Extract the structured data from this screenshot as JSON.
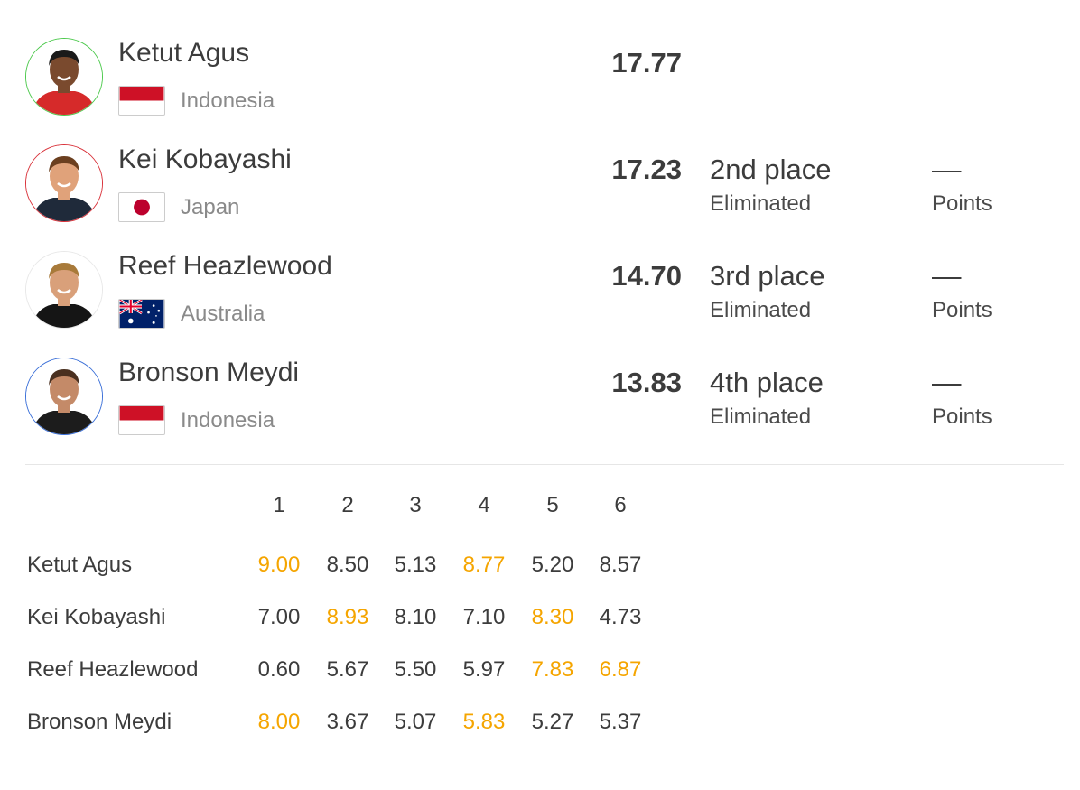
{
  "colors": {
    "highlight": "#f5a500",
    "text": "#3c3c3c",
    "muted": "#8a8a8a"
  },
  "athletes": [
    {
      "name": "Ketut Agus",
      "country": "Indonesia",
      "flag": "indonesia-flag",
      "score": "17.77",
      "place": "",
      "status": "",
      "points": "",
      "points_label": "",
      "ring": "#4cc94c",
      "shirt": "#d62a2a",
      "skin": "#7a4a2e",
      "hair": "#1a1a1a"
    },
    {
      "name": "Kei Kobayashi",
      "country": "Japan",
      "flag": "japan-flag",
      "score": "17.23",
      "place": "2nd place",
      "status": "Eliminated",
      "points": "––",
      "points_label": "Points",
      "ring": "#d9323a",
      "shirt": "#1f2a3a",
      "skin": "#e0a27a",
      "hair": "#6b3f1f"
    },
    {
      "name": "Reef Heazlewood",
      "country": "Australia",
      "flag": "australia-flag",
      "score": "14.70",
      "place": "3rd place",
      "status": "Eliminated",
      "points": "––",
      "points_label": "Points",
      "ring": "#e8e8e8",
      "shirt": "#151515",
      "skin": "#d9a07a",
      "hair": "#a87a3a"
    },
    {
      "name": "Bronson Meydi",
      "country": "Indonesia",
      "flag": "indonesia-flag",
      "score": "13.83",
      "place": "4th place",
      "status": "Eliminated",
      "points": "––",
      "points_label": "Points",
      "ring": "#3a6fd8",
      "shirt": "#1c1c1c",
      "skin": "#c48a68",
      "hair": "#4a3020"
    }
  ],
  "waves": {
    "headers": [
      "1",
      "2",
      "3",
      "4",
      "5",
      "6"
    ],
    "rows": [
      {
        "name": "Ketut Agus",
        "scores": [
          "9.00",
          "8.50",
          "5.13",
          "8.77",
          "5.20",
          "8.57"
        ],
        "highlight": [
          true,
          false,
          false,
          true,
          false,
          false
        ]
      },
      {
        "name": "Kei Kobayashi",
        "scores": [
          "7.00",
          "8.93",
          "8.10",
          "7.10",
          "8.30",
          "4.73"
        ],
        "highlight": [
          false,
          true,
          false,
          false,
          true,
          false
        ]
      },
      {
        "name": "Reef Heazlewood",
        "scores": [
          "0.60",
          "5.67",
          "5.50",
          "5.97",
          "7.83",
          "6.87"
        ],
        "highlight": [
          false,
          false,
          false,
          false,
          true,
          true
        ]
      },
      {
        "name": "Bronson Meydi",
        "scores": [
          "8.00",
          "3.67",
          "5.07",
          "5.83",
          "5.27",
          "5.37"
        ],
        "highlight": [
          true,
          false,
          false,
          true,
          false,
          false
        ]
      }
    ]
  }
}
